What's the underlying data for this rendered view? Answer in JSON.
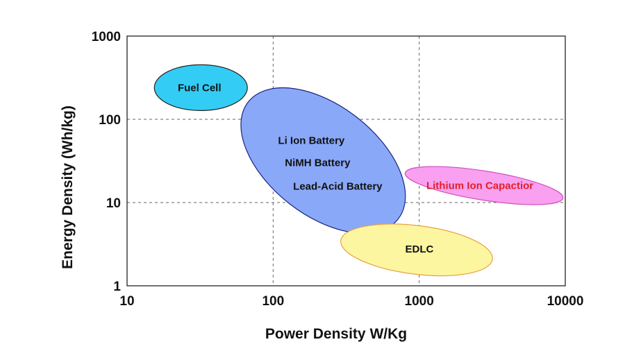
{
  "chart_data": {
    "type": "scatter",
    "xlabel": "Power Density W/Kg",
    "ylabel": "Energy Density (Wh/kg)",
    "xscale": "log",
    "yscale": "log",
    "xlim": [
      10,
      10000
    ],
    "ylim": [
      1,
      1000
    ],
    "xticks": [
      "10",
      "100",
      "1000",
      "10000"
    ],
    "yticks": [
      "1",
      "10",
      "100",
      "1000"
    ],
    "grid": true,
    "regions": [
      {
        "labels": [
          "Fuel Cell"
        ],
        "center": [
          32,
          240
        ],
        "fill": "#33ccf5",
        "stroke": "#222222",
        "text_color": "#111111"
      },
      {
        "labels": [
          "Li Ion Battery",
          "NiMH Battery",
          "Lead-Acid Battery"
        ],
        "center": [
          220,
          32
        ],
        "fill": "#8aa8f8",
        "stroke": "#1a237e",
        "text_color": "#111111"
      },
      {
        "labels": [
          "Lithium Ion Capactior"
        ],
        "center": [
          2780,
          16
        ],
        "fill": "#f9a0f0",
        "stroke": "#d050c0",
        "text_color": "#e0202a"
      },
      {
        "labels": [
          "EDLC"
        ],
        "center": [
          960,
          2.7
        ],
        "fill": "#fdf6a0",
        "stroke": "#e8a040",
        "text_color": "#111111"
      }
    ]
  }
}
